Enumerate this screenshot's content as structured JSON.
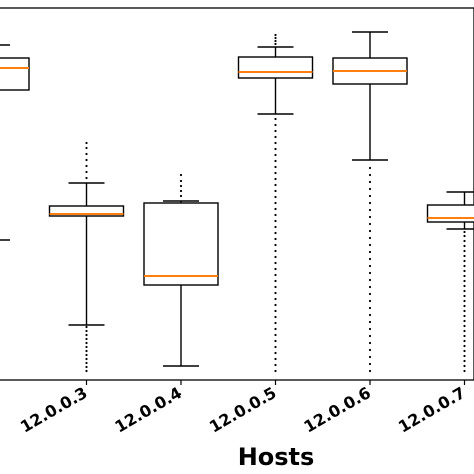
{
  "chart_data": {
    "type": "box",
    "title": "",
    "xlabel": "Hosts",
    "ylabel": "",
    "grid": false,
    "colors": {
      "median": "#ff7f0e",
      "box": "#000000",
      "outlier": "#000000"
    },
    "categories": [
      "",
      "12.0.0.3",
      "12.0.0.4",
      "12.0.0.5",
      "12.0.0.6",
      "12.0.0.7"
    ],
    "boxes": [
      {
        "category": "",
        "whisker_low": 140,
        "q1": 290,
        "median": 312,
        "q3": 322,
        "whisker_high": 335,
        "outliers": []
      },
      {
        "category": "12.0.0.3",
        "whisker_low": 55,
        "q1": 164,
        "median": 166,
        "q3": 174,
        "whisker_high": 197,
        "outliers": [
          9,
          13,
          17,
          21,
          25,
          29,
          33,
          37,
          41,
          45,
          49,
          53,
          202,
          208,
          214,
          220,
          226,
          232,
          237
        ]
      },
      {
        "category": "12.0.0.4",
        "whisker_low": 14,
        "q1": 95,
        "median": 104,
        "q3": 177,
        "whisker_high": 179,
        "outliers": [
          184,
          189,
          194,
          199,
          205
        ]
      },
      {
        "category": "12.0.0.5",
        "whisker_low": 266,
        "q1": 302,
        "median": 308,
        "q3": 323,
        "whisker_high": 333,
        "outliers": [
          9,
          15,
          21,
          27,
          33,
          39,
          45,
          51,
          57,
          63,
          69,
          75,
          81,
          87,
          93,
          99,
          105,
          111,
          117,
          123,
          129,
          135,
          141,
          147,
          153,
          159,
          165,
          171,
          177,
          183,
          189,
          195,
          201,
          207,
          213,
          219,
          225,
          231,
          237,
          243,
          249,
          255,
          261,
          336,
          339,
          342,
          345
        ]
      },
      {
        "category": "12.0.0.6",
        "whisker_low": 220,
        "q1": 296,
        "median": 309,
        "q3": 322,
        "whisker_high": 348,
        "outliers": [
          9,
          16,
          23,
          30,
          37,
          44,
          51,
          58,
          65,
          72,
          79,
          86,
          93,
          100,
          107,
          114,
          121,
          128,
          135,
          142,
          149,
          156,
          163,
          170,
          177,
          184,
          191,
          198,
          205,
          212
        ]
      },
      {
        "category": "12.0.0.7",
        "whisker_low": 151,
        "q1": 158,
        "median": 162,
        "q3": 175,
        "whisker_high": 188,
        "outliers": [
          9,
          14,
          19,
          24,
          29,
          34,
          39,
          44,
          49,
          54,
          59,
          64,
          69,
          74,
          79,
          84,
          89,
          94,
          99,
          104,
          109,
          114,
          119,
          124,
          129,
          134,
          139,
          144,
          148
        ]
      }
    ],
    "ylim": [
      0,
      372
    ]
  }
}
